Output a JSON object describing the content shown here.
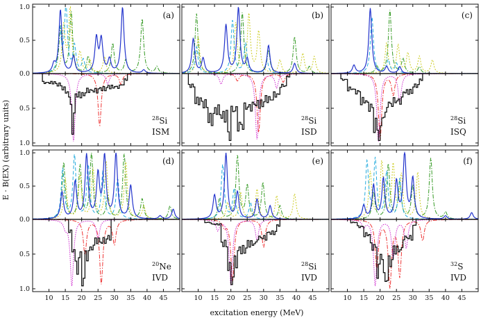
{
  "figure": {
    "xlabel": "excitation energy (MeV)",
    "ylabel": "E · B(EX)  (arbitrary units)",
    "x_tick_labels": [
      "10",
      "15",
      "20",
      "25",
      "30",
      "35",
      "40",
      "45"
    ],
    "y_tick_labels_upper": [
      "0.0",
      "0.5",
      "1.0"
    ],
    "y_tick_labels_lower": [
      "0.5",
      "1.0"
    ]
  },
  "chart_data": [
    {
      "type": "line",
      "panel": "(a)",
      "nucleus_mass": "28",
      "nucleus": "Si",
      "mode": "ISM",
      "xlim": [
        5,
        50
      ],
      "ylim": [
        -1,
        1
      ]
    },
    {
      "type": "line",
      "panel": "(b)",
      "nucleus_mass": "28",
      "nucleus": "Si",
      "mode": "ISD",
      "xlim": [
        5,
        50
      ],
      "ylim": [
        -1,
        1
      ]
    },
    {
      "type": "line",
      "panel": "(c)",
      "nucleus_mass": "28",
      "nucleus": "Si",
      "mode": "ISQ",
      "xlim": [
        5,
        50
      ],
      "ylim": [
        -1,
        1
      ]
    },
    {
      "type": "line",
      "panel": "(d)",
      "nucleus_mass": "20",
      "nucleus": "Ne",
      "mode": "IVD",
      "xlim": [
        5,
        50
      ],
      "ylim": [
        -1,
        1
      ]
    },
    {
      "type": "line",
      "panel": "(e)",
      "nucleus_mass": "28",
      "nucleus": "Si",
      "mode": "IVD",
      "xlim": [
        5,
        50
      ],
      "ylim": [
        -1,
        1
      ]
    },
    {
      "type": "line",
      "panel": "(f)",
      "nucleus_mass": "32",
      "nucleus": "S",
      "mode": "IVD",
      "xlim": [
        5,
        50
      ],
      "ylim": [
        -1,
        1
      ]
    }
  ],
  "colors": {
    "blue_solid": "#2233cc",
    "cyan_dashed": "#22aadd",
    "yellow_dotted": "#cccc22",
    "green_dashdot": "#339922",
    "black_step": "#111111",
    "magenta_dotted": "#cc22cc",
    "red_dashdot": "#ee3333"
  },
  "panel_a": {
    "upper": {
      "blue": [
        [
          11.5,
          0.12
        ],
        [
          13.5,
          0.95
        ],
        [
          17.5,
          0.25
        ],
        [
          24.5,
          0.52
        ],
        [
          26,
          0.5
        ],
        [
          28.5,
          0.2
        ],
        [
          32.5,
          0.99
        ],
        [
          39,
          0.05
        ]
      ],
      "cyan": [
        [
          13.3,
          0.65
        ],
        [
          15.2,
          0.98
        ],
        [
          17.8,
          0.4
        ],
        [
          20.5,
          0.2
        ]
      ],
      "yellow": [
        [
          14.5,
          0.7
        ],
        [
          16.5,
          0.95
        ],
        [
          19.5,
          0.3
        ],
        [
          22.5,
          0.2
        ],
        [
          27,
          0.25
        ]
      ],
      "green": [
        [
          13.5,
          0.7
        ],
        [
          16.8,
          0.92
        ],
        [
          22,
          0.25
        ],
        [
          29.5,
          0.45
        ],
        [
          33.5,
          0.2
        ],
        [
          38.5,
          0.82
        ],
        [
          43,
          0.1
        ]
      ]
    },
    "lower": {
      "step": [
        [
          8,
          0.15
        ],
        [
          12,
          0.18
        ],
        [
          14,
          0.25
        ],
        [
          15,
          0.3
        ],
        [
          16,
          0.45
        ],
        [
          17,
          0.95
        ],
        [
          17.5,
          0.75
        ],
        [
          18,
          0.35
        ],
        [
          21,
          0.28
        ],
        [
          25,
          0.25
        ],
        [
          28,
          0.22
        ],
        [
          32,
          0.18
        ],
        [
          33,
          0.1
        ]
      ],
      "magenta": [
        [
          17.5,
          0.98
        ],
        [
          28,
          0.15
        ]
      ],
      "red": [
        [
          25.5,
          0.75
        ],
        [
          32,
          0.15
        ]
      ]
    }
  },
  "panel_b": {
    "upper": {
      "blue": [
        [
          8.5,
          0.52
        ],
        [
          11.5,
          0.22
        ],
        [
          18.5,
          0.72
        ],
        [
          22.3,
          0.98
        ],
        [
          25,
          0.2
        ],
        [
          31.5,
          0.42
        ],
        [
          39.5,
          0.15
        ]
      ],
      "cyan": [
        [
          9.5,
          0.4
        ],
        [
          20.5,
          0.8
        ],
        [
          24.5,
          0.45
        ],
        [
          31,
          0.2
        ]
      ],
      "yellow": [
        [
          10,
          0.55
        ],
        [
          21.5,
          0.75
        ],
        [
          25.5,
          0.88
        ],
        [
          28.5,
          0.62
        ],
        [
          35,
          0.2
        ],
        [
          42,
          0.3
        ],
        [
          45.5,
          0.25
        ]
      ],
      "green": [
        [
          9.5,
          0.9
        ],
        [
          23.5,
          0.92
        ],
        [
          31.5,
          0.35
        ],
        [
          39.5,
          0.55
        ],
        [
          44,
          0.1
        ]
      ]
    },
    "lower": {
      "step": [
        [
          7,
          0.2
        ],
        [
          9,
          0.45
        ],
        [
          11,
          0.5
        ],
        [
          13,
          0.75
        ],
        [
          15,
          0.6
        ],
        [
          17,
          0.7
        ],
        [
          19,
          1.0
        ],
        [
          20,
          0.6
        ],
        [
          22,
          0.85
        ],
        [
          24,
          0.55
        ],
        [
          27,
          0.5
        ],
        [
          30,
          0.42
        ],
        [
          33,
          0.35
        ],
        [
          35,
          0.2
        ],
        [
          37,
          0.05
        ]
      ],
      "magenta": [
        [
          17,
          0.15
        ],
        [
          28,
          0.95
        ],
        [
          34,
          0.2
        ]
      ],
      "red": [
        [
          22,
          0.1
        ],
        [
          28.5,
          0.85
        ],
        [
          36,
          0.12
        ]
      ]
    }
  },
  "panel_c": {
    "upper": {
      "blue": [
        [
          12,
          0.12
        ],
        [
          17,
          0.98
        ],
        [
          22,
          0.1
        ],
        [
          26,
          0.1
        ]
      ],
      "cyan": [
        [
          17.5,
          0.85
        ],
        [
          22.5,
          0.2
        ],
        [
          25,
          0.15
        ]
      ],
      "yellow": [
        [
          22,
          0.45
        ],
        [
          25.5,
          0.42
        ],
        [
          28.5,
          0.3
        ],
        [
          32,
          0.25
        ],
        [
          36,
          0.2
        ]
      ],
      "green": [
        [
          19,
          0.1
        ],
        [
          23,
          0.95
        ],
        [
          27,
          0.22
        ],
        [
          32,
          0.1
        ]
      ]
    },
    "lower": {
      "step": [
        [
          8,
          0.1
        ],
        [
          10,
          0.25
        ],
        [
          12,
          0.3
        ],
        [
          14,
          0.45
        ],
        [
          16,
          0.55
        ],
        [
          18,
          0.85
        ],
        [
          19.5,
          1.0
        ],
        [
          20.5,
          0.7
        ],
        [
          22,
          0.5
        ],
        [
          24,
          0.45
        ],
        [
          27,
          0.3
        ],
        [
          30,
          0.2
        ],
        [
          32,
          0.1
        ]
      ],
      "magenta": [
        [
          19.5,
          0.98
        ],
        [
          26,
          0.4
        ]
      ],
      "red": [
        [
          20,
          0.95
        ],
        [
          24,
          0.3
        ]
      ]
    }
  },
  "panel_d": {
    "upper": {
      "blue": [
        [
          14,
          0.4
        ],
        [
          18,
          0.55
        ],
        [
          21.5,
          0.95
        ],
        [
          25,
          0.65
        ],
        [
          27,
          0.92
        ],
        [
          30.5,
          0.98
        ],
        [
          35,
          0.5
        ],
        [
          44,
          0.05
        ],
        [
          48,
          0.15
        ]
      ],
      "cyan": [
        [
          14.2,
          0.75
        ],
        [
          17.8,
          0.95
        ],
        [
          22,
          0.8
        ],
        [
          26.5,
          0.7
        ],
        [
          31,
          0.6
        ]
      ],
      "yellow": [
        [
          15,
          0.6
        ],
        [
          19.5,
          0.65
        ],
        [
          23.5,
          0.75
        ],
        [
          27.5,
          0.85
        ],
        [
          33.5,
          0.85
        ],
        [
          39,
          0.2
        ]
      ],
      "green": [
        [
          14.5,
          0.85
        ],
        [
          19.5,
          0.8
        ],
        [
          23,
          0.98
        ],
        [
          28,
          0.35
        ],
        [
          33,
          0.98
        ],
        [
          38.5,
          0.3
        ],
        [
          47,
          0.2
        ]
      ]
    },
    "lower": {
      "step": [
        [
          16,
          0.2
        ],
        [
          17,
          0.5
        ],
        [
          18,
          0.8
        ],
        [
          19,
          0.6
        ],
        [
          20,
          1.0
        ],
        [
          21,
          0.6
        ],
        [
          22,
          0.5
        ],
        [
          23,
          0.45
        ],
        [
          24,
          0.35
        ],
        [
          26,
          0.35
        ],
        [
          28,
          0.3
        ]
      ],
      "magenta": [
        [
          15,
          0.1
        ],
        [
          17,
          0.95
        ],
        [
          25,
          0.28
        ]
      ],
      "red": [
        [
          21,
          0.5
        ],
        [
          26,
          0.92
        ],
        [
          30,
          0.35
        ]
      ]
    }
  },
  "panel_e": {
    "upper": {
      "blue": [
        [
          15,
          0.35
        ],
        [
          18.5,
          0.98
        ],
        [
          22,
          0.4
        ],
        [
          28,
          0.3
        ],
        [
          32,
          0.2
        ]
      ],
      "cyan": [
        [
          17.5,
          0.82
        ],
        [
          21,
          0.45
        ],
        [
          26,
          0.25
        ]
      ],
      "yellow": [
        [
          19,
          0.25
        ],
        [
          23,
          0.4
        ],
        [
          28,
          0.45
        ],
        [
          34,
          0.35
        ],
        [
          39.5,
          0.38
        ]
      ],
      "green": [
        [
          16.5,
          0.3
        ],
        [
          22,
          0.95
        ],
        [
          25,
          0.5
        ],
        [
          29.8,
          0.55
        ],
        [
          35,
          0.2
        ]
      ]
    },
    "lower": {
      "step": [
        [
          12,
          0.05
        ],
        [
          14,
          0.08
        ],
        [
          17,
          0.4
        ],
        [
          19,
          0.8
        ],
        [
          20,
          0.98
        ],
        [
          21,
          0.7
        ],
        [
          22,
          0.5
        ],
        [
          25,
          0.4
        ],
        [
          28,
          0.3
        ],
        [
          31,
          0.22
        ],
        [
          34,
          0.1
        ]
      ],
      "magenta": [
        [
          16,
          0.15
        ],
        [
          20,
          0.95
        ],
        [
          28,
          0.3
        ]
      ],
      "red": [
        [
          18,
          0.1
        ],
        [
          20.5,
          0.9
        ],
        [
          30,
          0.4
        ]
      ]
    }
  },
  "panel_f": {
    "upper": {
      "blue": [
        [
          15,
          0.2
        ],
        [
          18,
          0.5
        ],
        [
          21,
          0.6
        ],
        [
          25,
          0.55
        ],
        [
          27.5,
          0.98
        ],
        [
          30,
          0.6
        ],
        [
          40,
          0.05
        ],
        [
          48,
          0.1
        ]
      ],
      "cyan": [
        [
          16,
          0.85
        ],
        [
          18.5,
          0.88
        ],
        [
          22,
          0.7
        ],
        [
          26,
          0.6
        ]
      ],
      "yellow": [
        [
          17,
          0.7
        ],
        [
          20.5,
          0.85
        ],
        [
          24,
          0.8
        ],
        [
          26.5,
          0.65
        ],
        [
          31.5,
          0.7
        ]
      ],
      "green": [
        [
          18,
          0.4
        ],
        [
          22.5,
          0.82
        ],
        [
          26,
          0.55
        ],
        [
          30,
          0.5
        ],
        [
          35.5,
          0.92
        ],
        [
          40,
          0.1
        ]
      ]
    },
    "lower": {
      "step": [
        [
          11,
          0.05
        ],
        [
          13,
          0.12
        ],
        [
          15,
          0.25
        ],
        [
          17,
          0.45
        ],
        [
          19,
          0.85
        ],
        [
          20,
          0.6
        ],
        [
          21,
          0.98
        ],
        [
          22.5,
          0.7
        ],
        [
          24,
          0.5
        ],
        [
          27,
          0.3
        ],
        [
          30,
          0.1
        ]
      ],
      "magenta": [
        [
          15,
          0.1
        ],
        [
          18.5,
          0.95
        ],
        [
          24,
          0.55
        ],
        [
          28,
          0.4
        ]
      ],
      "red": [
        [
          19,
          0.7
        ],
        [
          23,
          0.95
        ],
        [
          26,
          0.8
        ],
        [
          33,
          0.3
        ]
      ]
    }
  }
}
